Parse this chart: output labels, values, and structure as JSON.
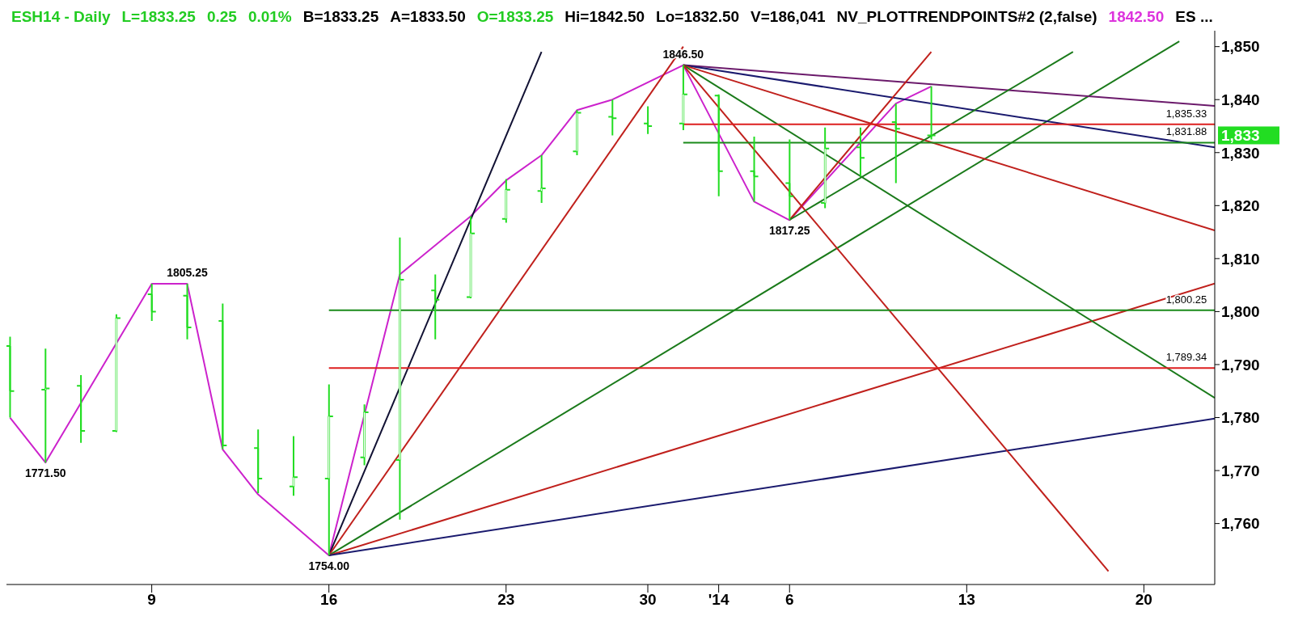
{
  "chart_data": {
    "type": "candlestick",
    "title": "ESH14 - Daily",
    "color": "#22dd22",
    "categories": [
      null,
      null,
      null,
      null,
      "9",
      null,
      null,
      null,
      null,
      "16",
      null,
      null,
      null,
      null,
      "23",
      null,
      null,
      null,
      "30",
      null,
      "'14",
      null,
      "6",
      null,
      null,
      null,
      null,
      "13",
      null,
      null,
      null,
      null,
      "20",
      null,
      null
    ],
    "ohlc": [
      [
        1793.5,
        1795.25,
        1780,
        1785
      ],
      [
        1785.25,
        1793,
        1771.5,
        1785.5
      ],
      [
        1786,
        1788,
        1775.25,
        1777.5
      ],
      [
        1777.5,
        1799.5,
        1777.25,
        1798.75
      ],
      [
        1803.25,
        1805.25,
        1798.25,
        1800
      ],
      [
        1803,
        1805.25,
        1794.75,
        1797
      ],
      [
        1798.25,
        1801.5,
        1774,
        1774.75
      ],
      [
        1774.25,
        1777.75,
        1765.75,
        1768.5
      ],
      [
        1767,
        1776.5,
        1765.25,
        1768.75
      ],
      [
        1768.5,
        1786.25,
        1754,
        1780.25
      ],
      [
        1772.5,
        1782.5,
        1771,
        1781
      ],
      [
        1772,
        1814,
        1760.75,
        1806
      ],
      [
        1804,
        1807,
        1794.75,
        1802.25
      ],
      [
        1802.75,
        1818,
        1802.5,
        1814.75
      ],
      [
        1817.5,
        1825,
        1816.75,
        1823
      ],
      [
        1822.75,
        1829.5,
        1820.5,
        1823.25
      ],
      [
        1830.25,
        1838,
        1829.5,
        1837.5
      ],
      [
        1836.75,
        1840,
        1833.25,
        1836.5
      ],
      [
        1835.5,
        1838.75,
        1833.5,
        1835
      ],
      [
        1835.5,
        1846.5,
        1834.25,
        1841
      ],
      [
        1840.75,
        1841,
        1821.75,
        1826.5
      ],
      [
        1826.5,
        1833,
        1820.75,
        1825.5
      ],
      [
        1824.25,
        1832.5,
        1817.25,
        1821.75
      ],
      [
        1820.5,
        1834.75,
        1819.5,
        1830.75
      ],
      [
        1831,
        1834.75,
        1825.5,
        1829
      ],
      [
        1835.75,
        1839.25,
        1824.25,
        1834.5
      ],
      [
        1833.25,
        1842.5,
        1832.5,
        1833.25
      ],
      null,
      null,
      null,
      null,
      null,
      null,
      null,
      null
    ],
    "series": [
      {
        "type": "line",
        "color": "#cc22cc",
        "values": [
          1780,
          1771.5,
          null,
          null,
          1805.25,
          1805.25,
          1774,
          1765.5,
          null,
          1754,
          null,
          1807,
          null,
          1818,
          1824.75,
          1829.5,
          1838,
          1840,
          null,
          1846.5,
          null,
          1820.75,
          1817.25,
          null,
          null,
          1839.25,
          1842.5,
          null,
          null,
          null,
          null,
          null,
          null,
          null,
          null
        ]
      },
      {
        "type": "line",
        "color": "#111133",
        "values": [
          null,
          null,
          null,
          null,
          null,
          null,
          null,
          null,
          null,
          1754,
          null,
          null,
          null,
          null,
          null,
          1849,
          null,
          null,
          null,
          null,
          null,
          null,
          null,
          null,
          null,
          null,
          null,
          null,
          null,
          null,
          null,
          null,
          null,
          null,
          null
        ]
      },
      {
        "type": "line",
        "color": "#c0201c",
        "values": [
          null,
          null,
          null,
          null,
          null,
          null,
          null,
          null,
          null,
          1754,
          null,
          null,
          null,
          null,
          null,
          null,
          null,
          null,
          null,
          1850,
          null,
          null,
          null,
          null,
          null,
          null,
          null,
          null,
          null,
          null,
          null,
          null,
          null,
          null,
          null
        ]
      },
      {
        "type": "line",
        "color": "#1a7a1a",
        "values": [
          null,
          null,
          null,
          null,
          null,
          null,
          null,
          null,
          null,
          1754,
          null,
          null,
          null,
          null,
          null,
          null,
          null,
          null,
          null,
          null,
          null,
          null,
          null,
          null,
          null,
          null,
          null,
          null,
          null,
          null,
          null,
          null,
          null,
          1851,
          null
        ]
      },
      {
        "type": "line",
        "color": "#c0201c",
        "values": [
          null,
          null,
          null,
          null,
          null,
          null,
          null,
          null,
          null,
          1754,
          null,
          null,
          null,
          null,
          null,
          null,
          null,
          null,
          null,
          null,
          null,
          null,
          null,
          null,
          null,
          null,
          null,
          null,
          null,
          null,
          null,
          null,
          null,
          null,
          1805.3
        ]
      },
      {
        "type": "line",
        "color": "#1a1a6e",
        "values": [
          null,
          null,
          null,
          null,
          null,
          null,
          null,
          null,
          null,
          1754,
          null,
          null,
          null,
          null,
          null,
          null,
          null,
          null,
          null,
          null,
          null,
          null,
          null,
          null,
          null,
          null,
          null,
          null,
          null,
          null,
          null,
          null,
          null,
          null,
          1779.8
        ]
      },
      {
        "type": "line",
        "color": "#6b1a6b",
        "values": [
          null,
          null,
          null,
          null,
          null,
          null,
          null,
          null,
          null,
          null,
          null,
          null,
          null,
          null,
          null,
          null,
          null,
          null,
          null,
          1846.5,
          null,
          null,
          null,
          null,
          null,
          null,
          null,
          null,
          null,
          null,
          null,
          null,
          null,
          null,
          1838.8
        ]
      },
      {
        "type": "line",
        "color": "#1a1a6e",
        "values": [
          null,
          null,
          null,
          null,
          null,
          null,
          null,
          null,
          null,
          null,
          null,
          null,
          null,
          null,
          null,
          null,
          null,
          null,
          null,
          1846.5,
          null,
          null,
          null,
          null,
          null,
          null,
          null,
          null,
          null,
          null,
          null,
          null,
          null,
          null,
          1831
        ]
      },
      {
        "type": "line",
        "color": "#c0201c",
        "values": [
          null,
          null,
          null,
          null,
          null,
          null,
          null,
          null,
          null,
          null,
          null,
          null,
          null,
          null,
          null,
          null,
          null,
          null,
          null,
          1846.5,
          null,
          null,
          null,
          null,
          null,
          null,
          null,
          null,
          null,
          null,
          null,
          null,
          null,
          null,
          1815.3
        ]
      },
      {
        "type": "line",
        "color": "#1a7a1a",
        "values": [
          null,
          null,
          null,
          null,
          null,
          null,
          null,
          null,
          null,
          null,
          null,
          null,
          null,
          null,
          null,
          null,
          null,
          null,
          null,
          1846.5,
          null,
          null,
          null,
          null,
          null,
          null,
          null,
          null,
          null,
          null,
          null,
          null,
          null,
          null,
          1783.7
        ]
      },
      {
        "type": "line",
        "color": "#c0201c",
        "values": [
          null,
          null,
          null,
          null,
          null,
          null,
          null,
          null,
          null,
          null,
          null,
          null,
          null,
          null,
          null,
          null,
          null,
          null,
          null,
          1846.5,
          null,
          null,
          null,
          null,
          null,
          null,
          null,
          null,
          null,
          null,
          null,
          1751,
          null,
          null,
          null
        ]
      },
      {
        "type": "line",
        "color": "#c0201c",
        "values": [
          null,
          null,
          null,
          null,
          null,
          null,
          null,
          null,
          null,
          null,
          null,
          null,
          null,
          null,
          null,
          null,
          null,
          null,
          null,
          null,
          null,
          null,
          1817.3,
          null,
          null,
          null,
          1849,
          null,
          null,
          null,
          null,
          null,
          null,
          null,
          null
        ]
      },
      {
        "type": "line",
        "color": "#1a7a1a",
        "values": [
          null,
          null,
          null,
          null,
          null,
          null,
          null,
          null,
          null,
          null,
          null,
          null,
          null,
          null,
          null,
          null,
          null,
          null,
          null,
          null,
          null,
          null,
          1817.3,
          null,
          null,
          null,
          null,
          null,
          null,
          null,
          1849,
          null,
          null,
          null,
          null
        ]
      },
      {
        "type": "line",
        "color": "#dd1f1f",
        "values": [
          null,
          null,
          null,
          null,
          null,
          null,
          null,
          null,
          null,
          null,
          null,
          null,
          null,
          null,
          null,
          null,
          null,
          null,
          null,
          1835.33,
          null,
          null,
          null,
          null,
          null,
          null,
          null,
          null,
          null,
          null,
          null,
          null,
          null,
          null,
          1835.33
        ]
      },
      {
        "type": "line",
        "color": "#1a8a1a",
        "values": [
          null,
          null,
          null,
          null,
          null,
          null,
          null,
          null,
          null,
          null,
          null,
          null,
          null,
          null,
          null,
          null,
          null,
          null,
          null,
          1831.88,
          null,
          null,
          null,
          null,
          null,
          null,
          null,
          null,
          null,
          null,
          null,
          null,
          null,
          null,
          1831.88
        ]
      },
      {
        "type": "line",
        "color": "#1a8a1a",
        "values": [
          null,
          null,
          null,
          null,
          null,
          null,
          null,
          null,
          null,
          1800.25,
          null,
          null,
          null,
          null,
          null,
          null,
          null,
          null,
          null,
          null,
          null,
          null,
          null,
          null,
          null,
          null,
          null,
          null,
          null,
          null,
          null,
          null,
          null,
          null,
          1800.25
        ]
      },
      {
        "type": "line",
        "color": "#dd1f1f",
        "values": [
          null,
          null,
          null,
          null,
          null,
          null,
          null,
          null,
          null,
          1789.34,
          null,
          null,
          null,
          null,
          null,
          null,
          null,
          null,
          null,
          null,
          null,
          null,
          null,
          null,
          null,
          null,
          null,
          null,
          null,
          null,
          null,
          null,
          null,
          null,
          1789.34
        ]
      }
    ],
    "ylim": [
      1748.5,
      1853
    ],
    "yticks": [
      {
        "value": 1760,
        "label": "1,760"
      },
      {
        "value": 1770,
        "label": "1,770"
      },
      {
        "value": 1780,
        "label": "1,780"
      },
      {
        "value": 1790,
        "label": "1,790"
      },
      {
        "value": 1800,
        "label": "1,800"
      },
      {
        "value": 1810,
        "label": "1,810"
      },
      {
        "value": 1820,
        "label": "1,820"
      },
      {
        "value": 1830,
        "label": "1,830"
      },
      {
        "value": 1840,
        "label": "1,840"
      },
      {
        "value": 1850,
        "label": "1,850"
      }
    ],
    "annotations": [
      "L=1833.25",
      "0.25",
      "0.01%",
      "B=1833.25",
      "A=1833.50",
      "O=1833.25",
      "Hi=1842.50",
      "Lo=1832.50",
      "V=186,041",
      "NV_PLOTTRENDPOINTS#2 (2,false)",
      "1842.50",
      "ES ...",
      "1,833",
      {
        "text": "1771.50",
        "y": 1771.5
      },
      {
        "text": "1805.25",
        "y": 1805.25
      },
      {
        "text": "1754.00",
        "y": 1754
      },
      {
        "text": "1846.50",
        "y": 1846.5
      },
      {
        "text": "1817.25",
        "y": 1817.25
      },
      {
        "text": "1,835.33",
        "y": 1835.33
      },
      {
        "text": "1,831.88",
        "y": 1831.88
      },
      {
        "text": "1,800.25",
        "y": 1800.25
      },
      {
        "text": "1,789.34",
        "y": 1789.34
      }
    ]
  }
}
